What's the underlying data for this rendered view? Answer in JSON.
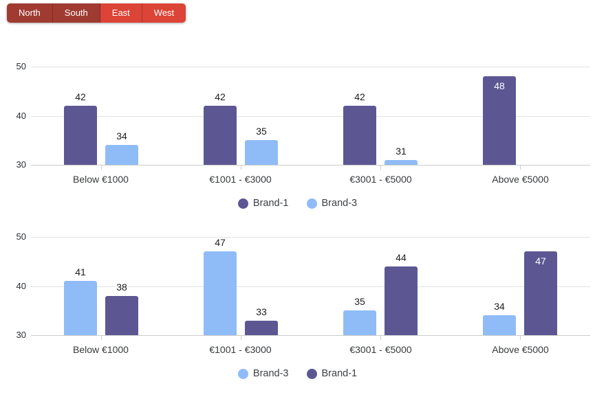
{
  "toolbar": {
    "buttons": [
      {
        "label": "North",
        "active": true
      },
      {
        "label": "South",
        "active": true
      },
      {
        "label": "East",
        "active": false
      },
      {
        "label": "West",
        "active": false
      }
    ],
    "active_color": "#A03B32",
    "inactive_color": "#DB4437"
  },
  "colors": {
    "brand1": "#5C5793",
    "brand3": "#8FBCF6",
    "gridline": "#E3E3E3",
    "baseline": "#CBCBCB",
    "axis_text": "#2B2F33",
    "category_text": "#37393B",
    "value_text": "#1C1C1C",
    "value_text_inside": "#FFFFFF"
  },
  "chart_data": [
    {
      "type": "bar",
      "title": "",
      "xlabel": "",
      "ylabel": "",
      "categories": [
        "Below €1000",
        "€1001 - €3000",
        "€3001 - €5000",
        "Above €5000"
      ],
      "series": [
        {
          "name": "Brand-1",
          "color_key": "brand1",
          "values": [
            42,
            42,
            42,
            48
          ],
          "label_inside": [
            false,
            false,
            false,
            true
          ]
        },
        {
          "name": "Brand-3",
          "color_key": "brand3",
          "values": [
            34,
            35,
            31,
            null
          ],
          "label_inside": [
            false,
            false,
            false,
            false
          ]
        }
      ],
      "ylim": [
        30,
        50
      ],
      "yticks": [
        30,
        40,
        50
      ],
      "grid": true,
      "legend_position": "bottom"
    },
    {
      "type": "bar",
      "title": "",
      "xlabel": "",
      "ylabel": "",
      "categories": [
        "Below €1000",
        "€1001 - €3000",
        "€3001 - €5000",
        "Above €5000"
      ],
      "series": [
        {
          "name": "Brand-3",
          "color_key": "brand3",
          "values": [
            41,
            47,
            35,
            34
          ],
          "label_inside": [
            false,
            false,
            false,
            false
          ]
        },
        {
          "name": "Brand-1",
          "color_key": "brand1",
          "values": [
            38,
            33,
            44,
            47
          ],
          "label_inside": [
            false,
            false,
            false,
            true
          ]
        }
      ],
      "ylim": [
        30,
        50
      ],
      "yticks": [
        30,
        40,
        50
      ],
      "grid": true,
      "legend_position": "bottom"
    }
  ]
}
